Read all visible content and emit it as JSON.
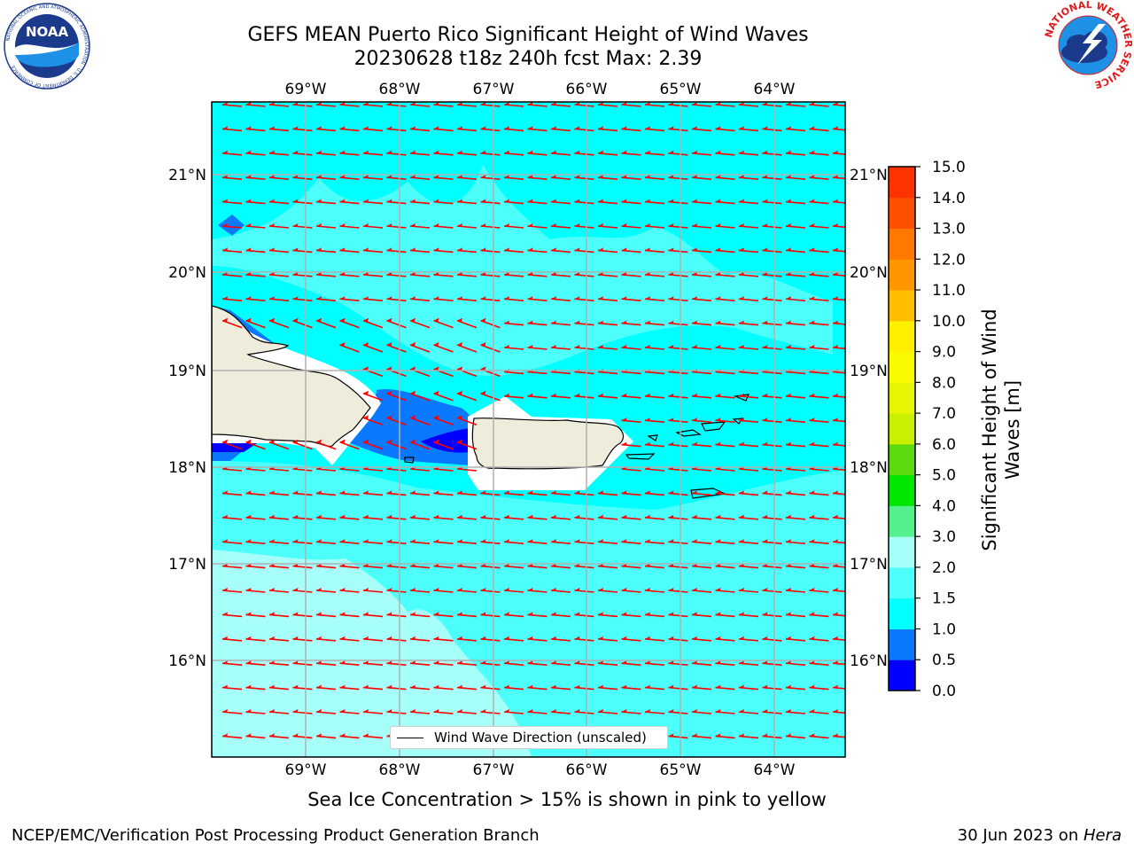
{
  "header": {
    "title_line1": "GEFS MEAN Puerto Rico Significant Height of Wind Waves",
    "title_line2": "20230628 t18z 240h fcst   Max: 2.39"
  },
  "map": {
    "lon_labels": [
      "69°W",
      "68°W",
      "67°W",
      "66°W",
      "65°W",
      "64°W"
    ],
    "lat_labels": [
      "21°N",
      "20°N",
      "19°N",
      "18°N",
      "17°N",
      "16°N"
    ],
    "legend_text": "Wind Wave Direction (unscaled)",
    "land_color": "#eeeddb",
    "coast_color": "#000000",
    "arrow_color": "#ff0000",
    "grid_color": "#b0b0b0"
  },
  "colorbar": {
    "title": "Significant Height of Wind Waves [m]",
    "title_line1": "Significant Height of Wind",
    "title_line2": "Waves [m]",
    "ticks": [
      "15.0",
      "14.0",
      "13.0",
      "12.0",
      "11.0",
      "10.0",
      "9.0",
      "8.0",
      "7.0",
      "6.0",
      "5.0",
      "4.0",
      "3.0",
      "2.0",
      "1.5",
      "1.0",
      "0.5",
      "0.0"
    ],
    "bins": [
      {
        "from": 0.0,
        "to": 0.5,
        "color": "#0000ff"
      },
      {
        "from": 0.5,
        "to": 1.0,
        "color": "#0a78ff"
      },
      {
        "from": 1.0,
        "to": 1.5,
        "color": "#00ffff"
      },
      {
        "from": 1.5,
        "to": 2.0,
        "color": "#4dfffa"
      },
      {
        "from": 2.0,
        "to": 3.0,
        "color": "#a6fff9"
      },
      {
        "from": 3.0,
        "to": 4.0,
        "color": "#54f08e"
      },
      {
        "from": 4.0,
        "to": 5.0,
        "color": "#00e600"
      },
      {
        "from": 5.0,
        "to": 6.0,
        "color": "#5cd90f"
      },
      {
        "from": 6.0,
        "to": 7.0,
        "color": "#c8f000"
      },
      {
        "from": 7.0,
        "to": 8.0,
        "color": "#e6f500"
      },
      {
        "from": 8.0,
        "to": 9.0,
        "color": "#fafa00"
      },
      {
        "from": 9.0,
        "to": 10.0,
        "color": "#fff000"
      },
      {
        "from": 10.0,
        "to": 11.0,
        "color": "#ffbe00"
      },
      {
        "from": 11.0,
        "to": 12.0,
        "color": "#ff9600"
      },
      {
        "from": 12.0,
        "to": 13.0,
        "color": "#ff7800"
      },
      {
        "from": 13.0,
        "to": 14.0,
        "color": "#ff5000"
      },
      {
        "from": 14.0,
        "to": 15.0,
        "color": "#ff3200"
      }
    ]
  },
  "logos": {
    "noaa": {
      "text": "NOAA",
      "ring_text": "NATIONAL OCEANIC AND ATMOSPHERIC ADMINISTRATION · U.S. DEPARTMENT OF COMMERCE"
    },
    "nws": {
      "ring_text": "NATIONAL WEATHER SERVICE"
    }
  },
  "note": "Sea Ice Concentration > 15% is shown in pink to yellow",
  "footer": {
    "left": "NCEP/EMC/Verification Post Processing Product Generation Branch",
    "right_prefix": "30 Jun 2023 on ",
    "right_host": "Hera"
  }
}
